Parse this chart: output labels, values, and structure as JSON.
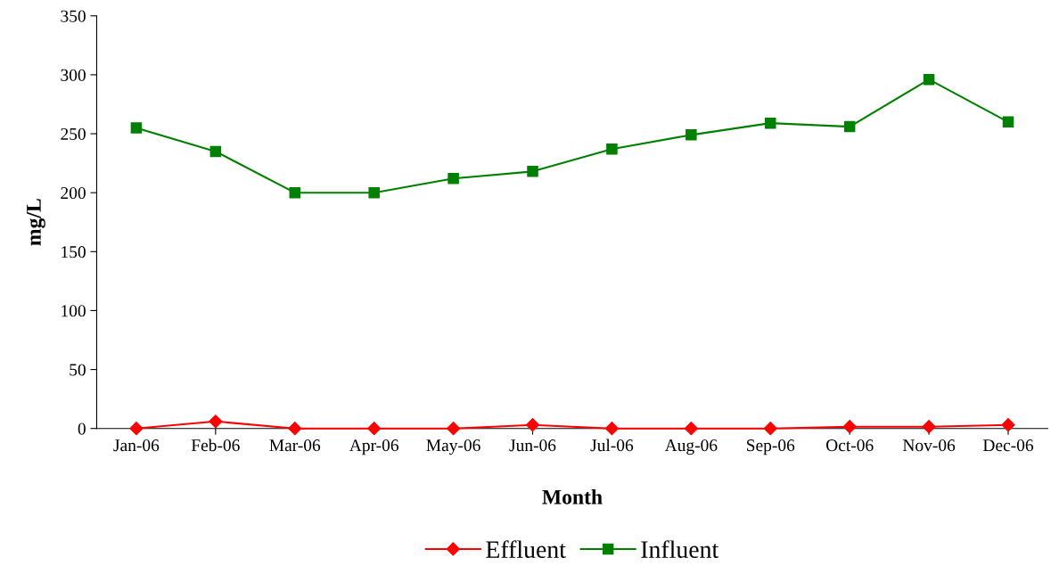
{
  "chart_data": {
    "type": "line",
    "xlabel": "Month",
    "ylabel": "mg/L",
    "categories": [
      "Jan-06",
      "Feb-06",
      "Mar-06",
      "Apr-06",
      "May-06",
      "Jun-06",
      "Jul-06",
      "Aug-06",
      "Sep-06",
      "Oct-06",
      "Nov-06",
      "Dec-06"
    ],
    "series": [
      {
        "name": "Effluent",
        "color": "#ff0000",
        "marker": "diamond",
        "values": [
          0,
          6,
          0,
          0,
          0,
          3,
          0,
          0,
          0,
          1.5,
          1.5,
          3
        ]
      },
      {
        "name": "Influent",
        "color": "#008000",
        "marker": "square",
        "values": [
          255,
          235,
          200,
          200,
          212,
          218,
          237,
          249,
          259,
          256,
          296,
          260
        ]
      }
    ],
    "ylim": [
      0,
      350
    ],
    "yticks": [
      0,
      50,
      100,
      150,
      200,
      250,
      300,
      350
    ],
    "grid": false,
    "legend": "bottom",
    "line_style": "solid"
  }
}
